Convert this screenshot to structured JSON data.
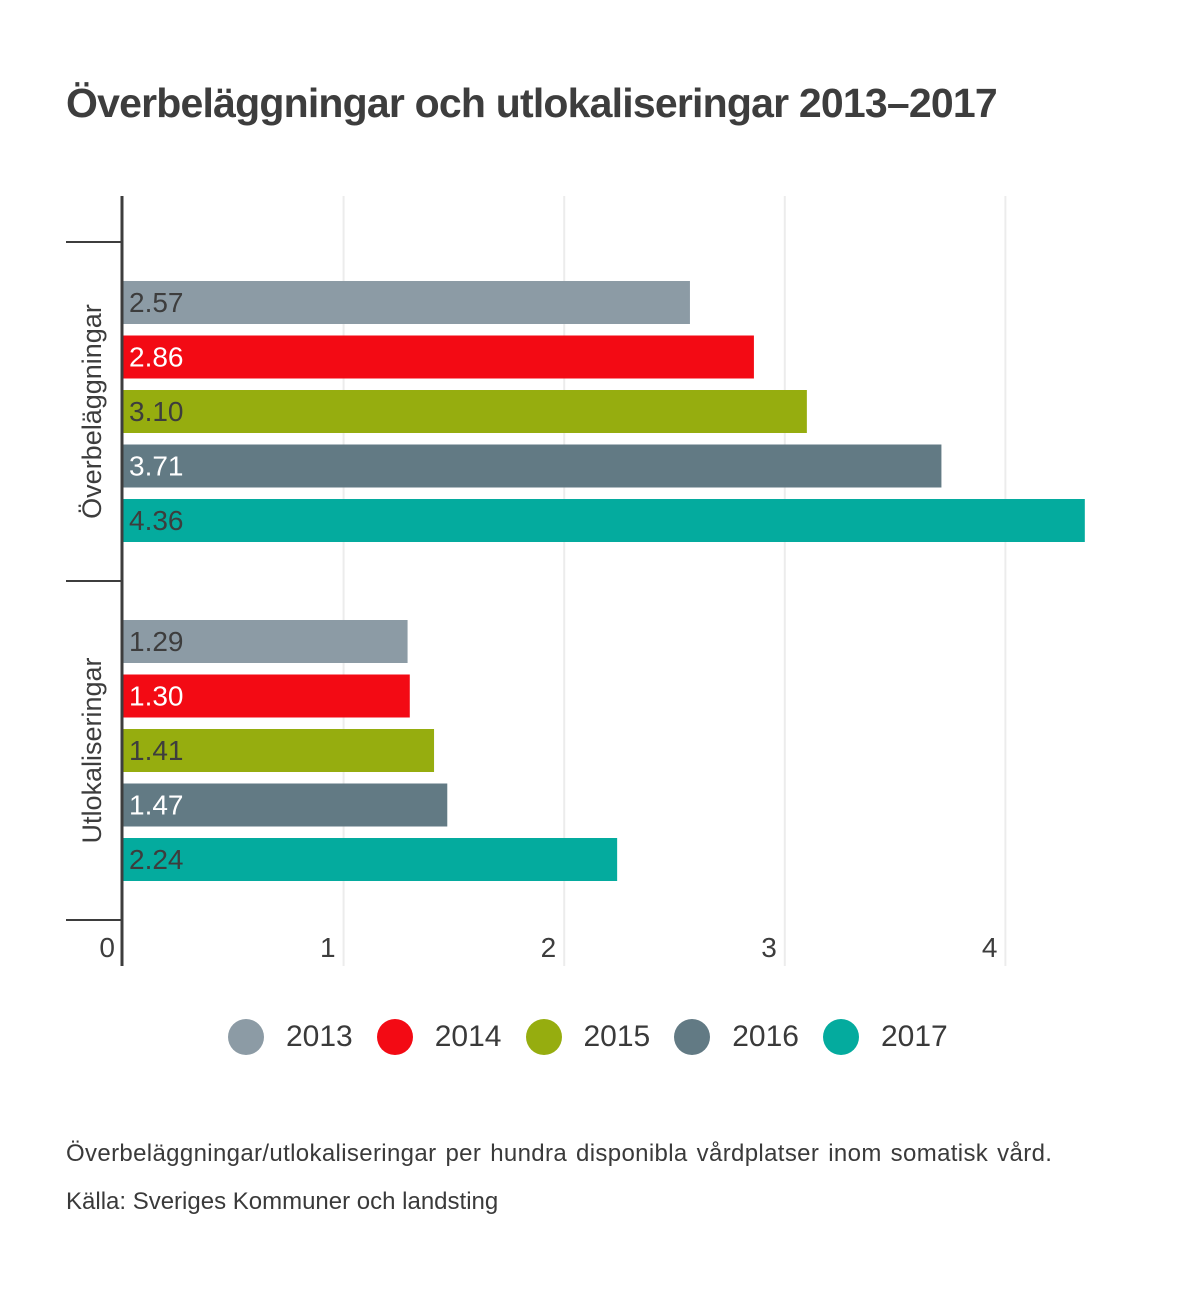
{
  "chart_data": {
    "type": "bar",
    "orientation": "horizontal",
    "title": "Överbeläggningar och utlokaliseringar 2013–2017",
    "categories": [
      "Överbeläggningar",
      "Utlokaliseringar"
    ],
    "series": [
      {
        "name": "2013",
        "color": "#8C9BA5",
        "label_color": "#3d3d3d",
        "values": [
          2.57,
          1.29
        ],
        "labels": [
          "2.57",
          "1.29"
        ]
      },
      {
        "name": "2014",
        "color": "#F30A14",
        "label_color": "#ffffff",
        "values": [
          2.86,
          1.3
        ],
        "labels": [
          "2.86",
          "1.30"
        ]
      },
      {
        "name": "2015",
        "color": "#96AD0F",
        "label_color": "#3d3d3d",
        "values": [
          3.1,
          1.41
        ],
        "labels": [
          "3.10",
          "1.41"
        ]
      },
      {
        "name": "2016",
        "color": "#627A84",
        "label_color": "#ffffff",
        "values": [
          3.71,
          1.47
        ],
        "labels": [
          "3.71",
          "1.47"
        ]
      },
      {
        "name": "2017",
        "color": "#04AB9E",
        "label_color": "#3d3d3d",
        "values": [
          4.36,
          2.24
        ],
        "labels": [
          "4.36",
          "2.24"
        ]
      }
    ],
    "xlabel": "",
    "ylabel": "",
    "xlim": [
      0,
      4.5
    ],
    "xticks": [
      0,
      1,
      2,
      3,
      4
    ],
    "xtick_labels": [
      "0",
      "1",
      "2",
      "3",
      "4"
    ],
    "grid": true,
    "legend_position": "bottom-center"
  },
  "legend": [
    {
      "label": "2013",
      "color": "#8C9BA5"
    },
    {
      "label": "2014",
      "color": "#F30A14"
    },
    {
      "label": "2015",
      "color": "#96AD0F"
    },
    {
      "label": "2016",
      "color": "#627A84"
    },
    {
      "label": "2017",
      "color": "#04AB9E"
    }
  ],
  "notes": {
    "description": "Överbeläggningar/utlokaliseringar per hundra disponibla vårdplatser inom somatisk vård.",
    "source": "Källa: Sveriges Kommuner och landsting"
  }
}
